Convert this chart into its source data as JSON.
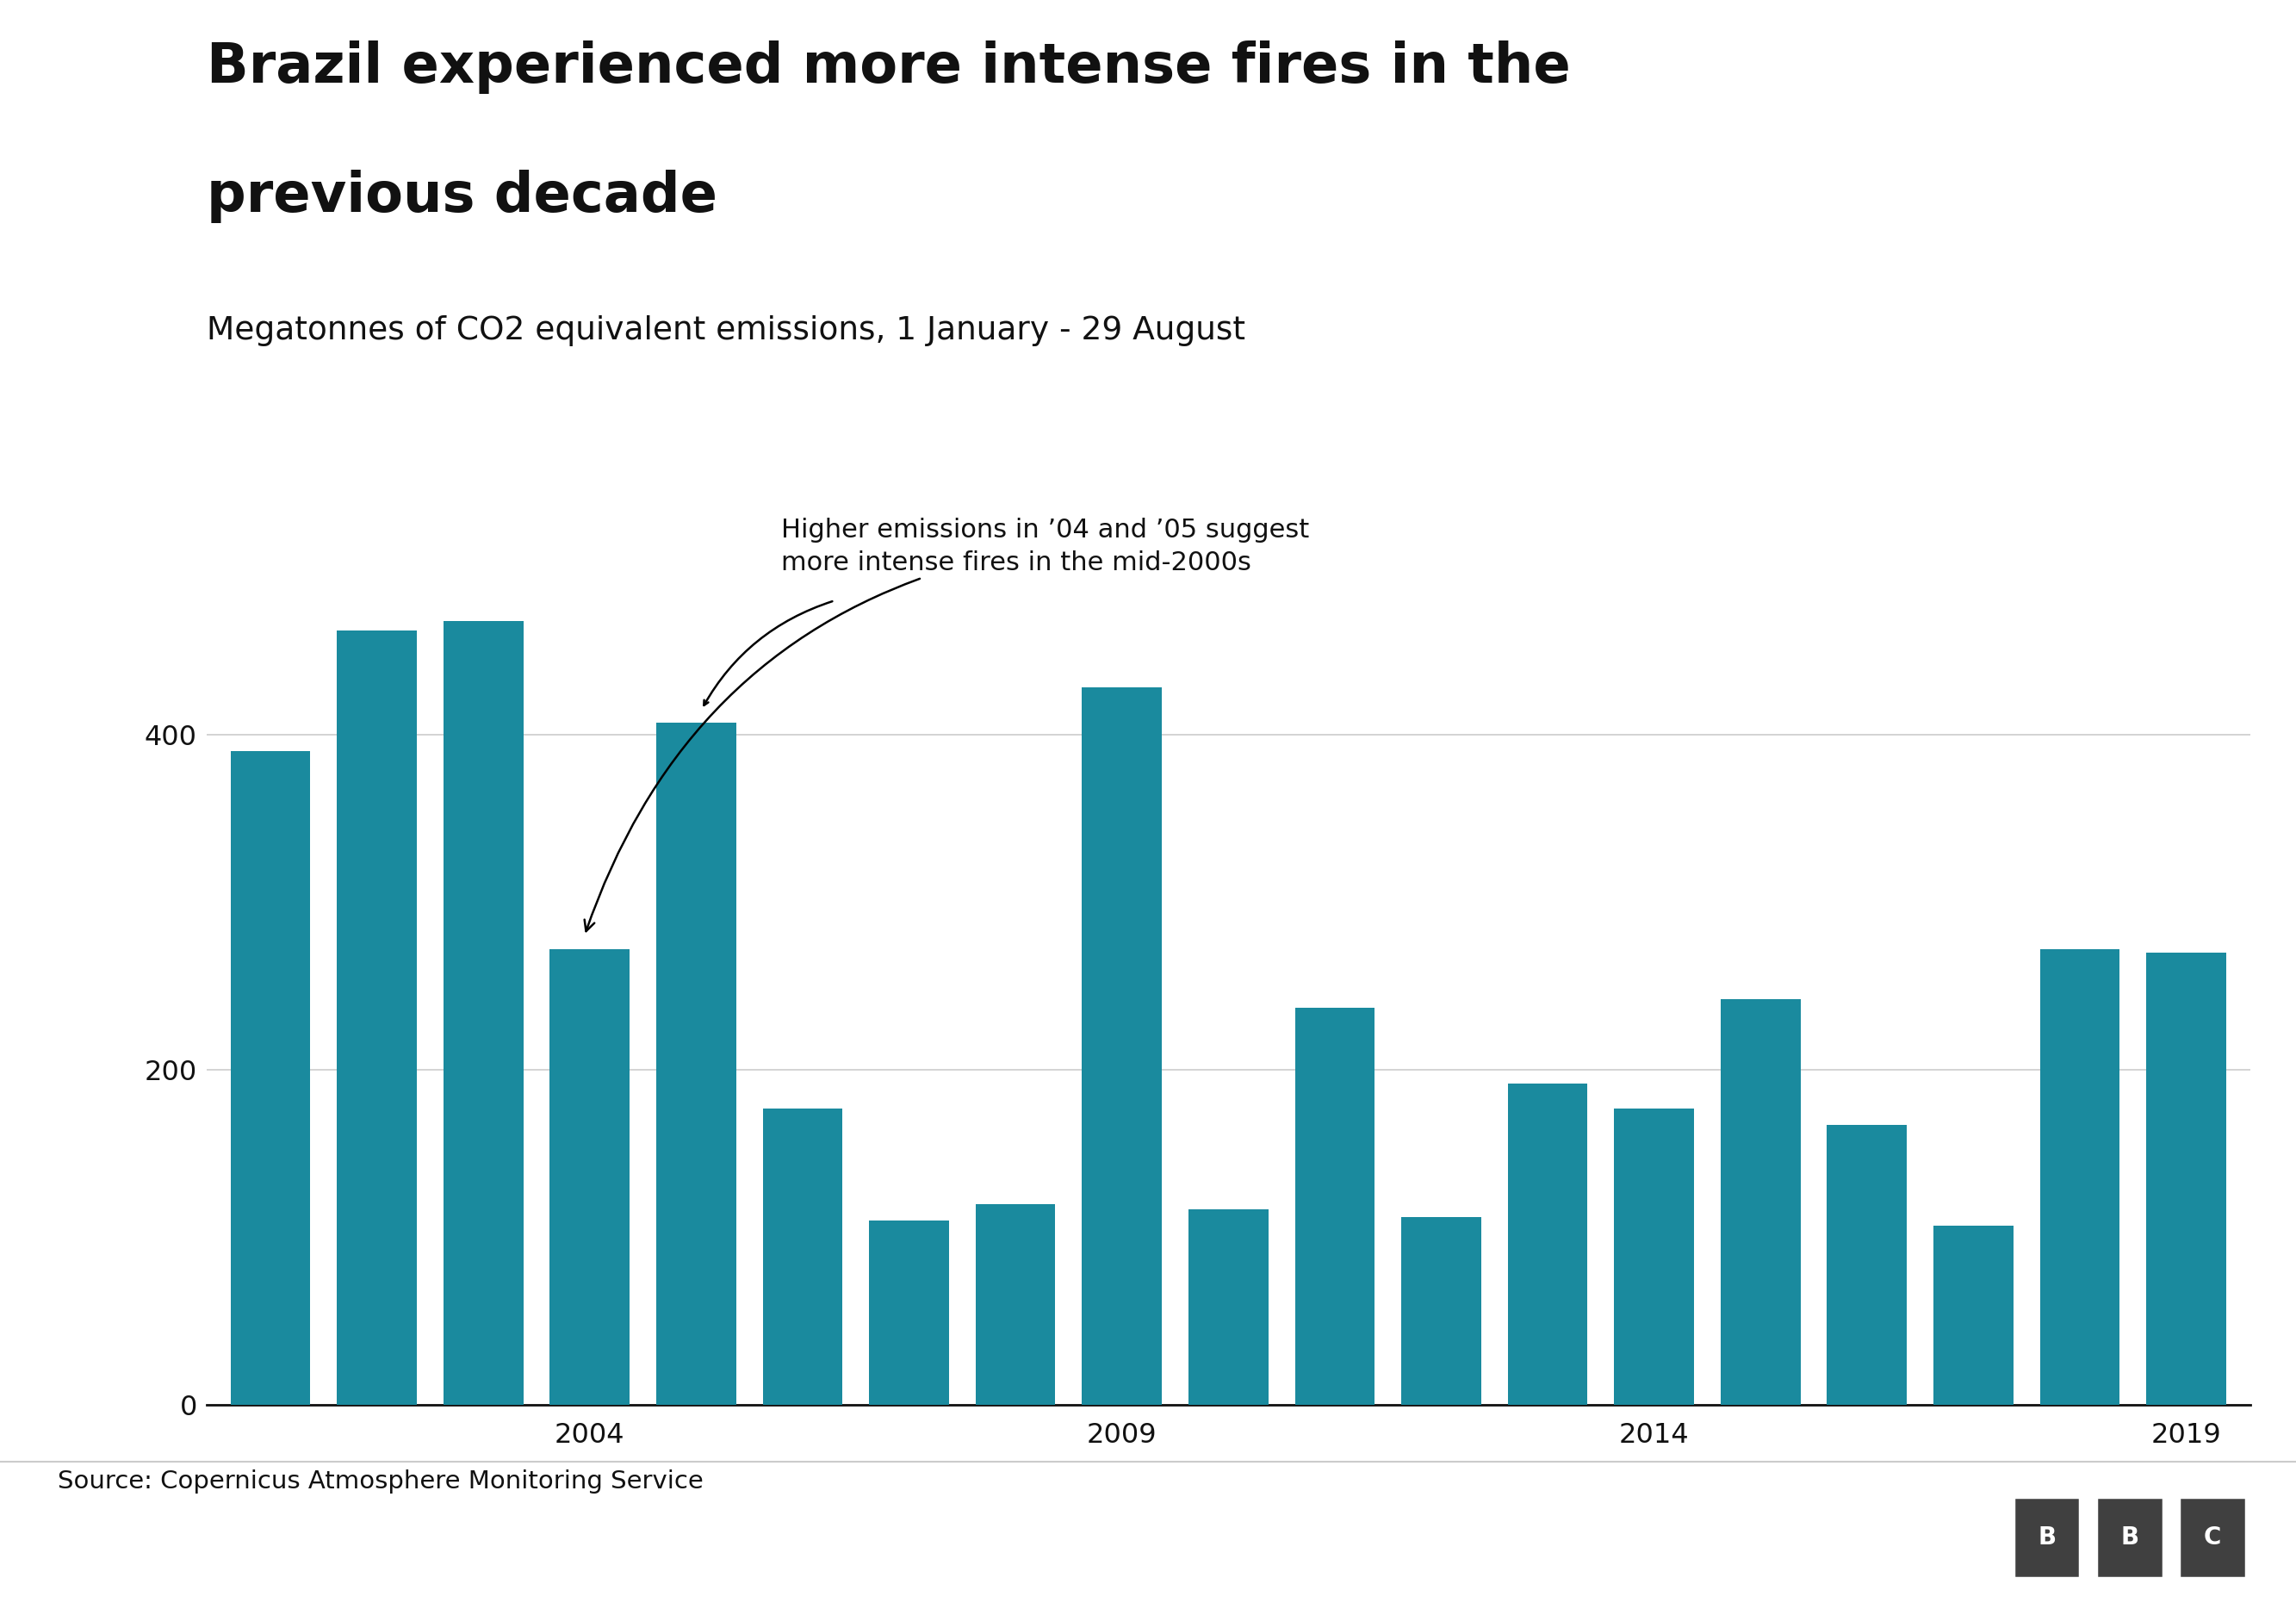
{
  "title_line1": "Brazil experienced more intense fires in the",
  "title_line2": "previous decade",
  "subtitle": "Megatonnes of CO2 equivalent emissions, 1 January - 29 August",
  "source": "Source: Copernicus Atmosphere Monitoring Service",
  "annotation_line1": "Higher emissions in ’04 and ’05 suggest",
  "annotation_line2": "more intense fires in the mid-2000s",
  "years": [
    2001,
    2002,
    2003,
    2004,
    2005,
    2006,
    2007,
    2008,
    2009,
    2010,
    2011,
    2012,
    2013,
    2014,
    2015,
    2016,
    2017,
    2018,
    2019
  ],
  "values": [
    390,
    462,
    468,
    272,
    407,
    177,
    110,
    120,
    428,
    117,
    237,
    112,
    192,
    177,
    242,
    167,
    107,
    272,
    270
  ],
  "bar_color": "#1a8a9e",
  "bg_color": "#ffffff",
  "text_dark": "#111111",
  "text_mid": "#555555",
  "grid_color": "#cccccc",
  "bottom_line_color": "#cccccc",
  "bbc_bg": "#404040",
  "yticks": [
    0,
    200,
    400
  ],
  "ylim_max": 530,
  "xtick_years": [
    2004,
    2009,
    2014,
    2019
  ],
  "title_fontsize": 46,
  "subtitle_fontsize": 27,
  "source_fontsize": 21,
  "tick_fontsize": 23,
  "annot_fontsize": 22,
  "bar_width": 0.75
}
